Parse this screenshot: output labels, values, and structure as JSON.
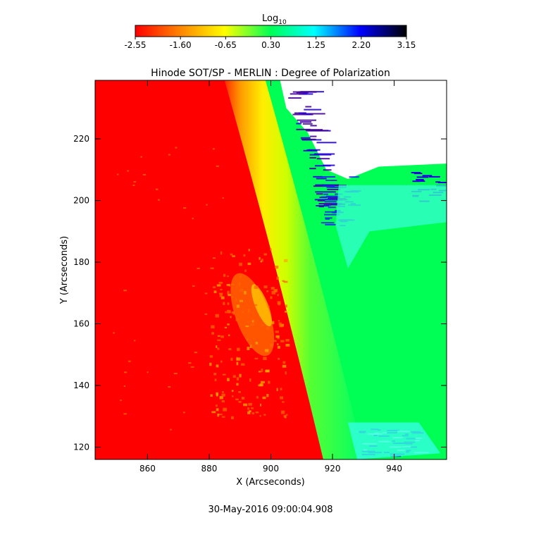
{
  "footer_timestamp": "30-May-2016 09:00:04.908",
  "chart_data": {
    "type": "heatmap",
    "title": "Hinode SOT/SP - MERLIN : Degree of Polarization",
    "xlabel": "X (Arcseconds)",
    "ylabel": "Y (Arcseconds)",
    "xlim": [
      843,
      957
    ],
    "ylim": [
      116,
      239
    ],
    "xticks": [
      860,
      880,
      900,
      920,
      940
    ],
    "yticks": [
      120,
      140,
      160,
      180,
      200,
      220
    ],
    "grid": false,
    "colorbar": {
      "label": "Log",
      "label_subscript": "10",
      "ticks": [
        "-2.55",
        "-1.60",
        "-0.65",
        "0.30",
        "1.25",
        "2.20",
        "3.15"
      ],
      "range": [
        -2.55,
        3.15
      ],
      "colors": [
        "#ff0000",
        "#ff8000",
        "#ffff00",
        "#00ff55",
        "#00ffff",
        "#0000ff",
        "#000000"
      ]
    },
    "limb": {
      "x_at_ymax": 885,
      "x_at_ymin": 917
    }
  }
}
